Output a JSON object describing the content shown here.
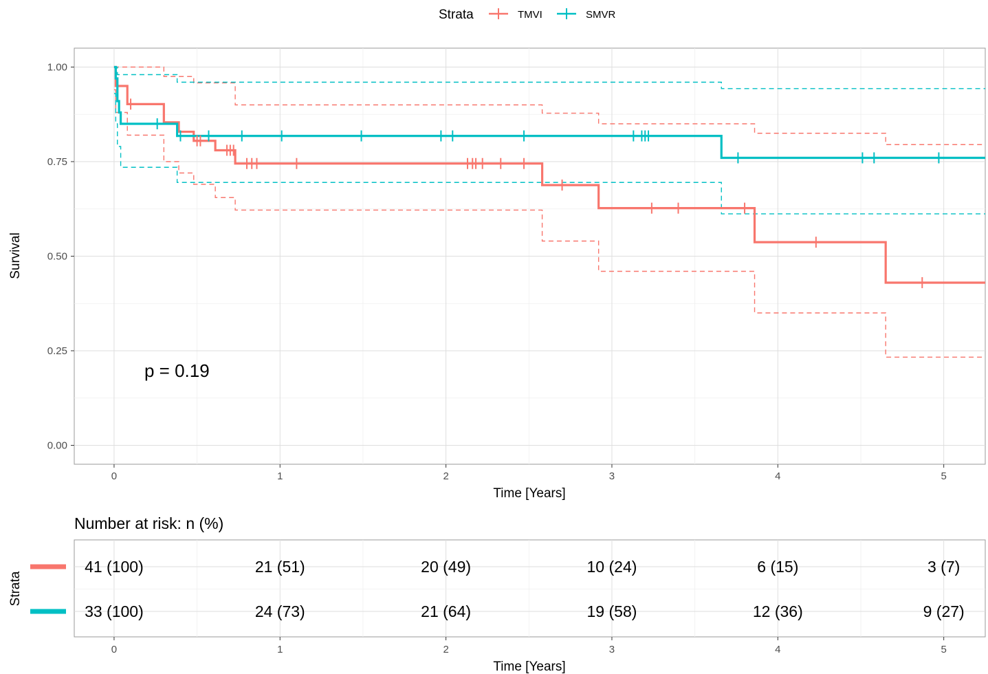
{
  "chart_data": {
    "type": "line",
    "subtype": "kaplan-meier",
    "legend": {
      "title": "Strata",
      "placement": "top",
      "entries": [
        "TMVI",
        "SMVR"
      ]
    },
    "xlabel": "Time [Years]",
    "ylabel": "Survival",
    "xlim": [
      -0.24,
      5.25
    ],
    "ylim": [
      -0.05,
      1.05
    ],
    "x_ticks": [
      "0",
      "1",
      "2",
      "3",
      "4",
      "5"
    ],
    "y_ticks": [
      "0.00",
      "0.25",
      "0.50",
      "0.75",
      "1.00"
    ],
    "grid": true,
    "annotation": "p = 0.19",
    "series": [
      {
        "name": "TMVI",
        "color": "#F8766D",
        "steps": [
          [
            0,
            1.0
          ],
          [
            0.01,
            0.95
          ],
          [
            0.08,
            0.902
          ],
          [
            0.3,
            0.854
          ],
          [
            0.39,
            0.829
          ],
          [
            0.48,
            0.805
          ],
          [
            0.61,
            0.78
          ],
          [
            0.73,
            0.756
          ],
          [
            0.73,
            0.745
          ],
          [
            2.58,
            0.688
          ],
          [
            2.92,
            0.627
          ],
          [
            3.86,
            0.537
          ],
          [
            4.65,
            0.43
          ]
        ],
        "censor_x": [
          0.1,
          0.5,
          0.52,
          0.68,
          0.7,
          0.72,
          0.8,
          0.83,
          0.86,
          1.1,
          2.13,
          2.16,
          2.18,
          2.22,
          2.33,
          2.47,
          2.7,
          3.24,
          3.4,
          3.8,
          4.23,
          4.87
        ],
        "upper_ci": [
          [
            0,
            1.0
          ],
          [
            0.3,
            0.975
          ],
          [
            0.48,
            0.958
          ],
          [
            0.73,
            0.9
          ],
          [
            2.58,
            0.878
          ],
          [
            2.92,
            0.85
          ],
          [
            3.86,
            0.825
          ],
          [
            4.65,
            0.795
          ]
        ],
        "lower_ci": [
          [
            0,
            0.94
          ],
          [
            0.01,
            0.88
          ],
          [
            0.08,
            0.82
          ],
          [
            0.3,
            0.75
          ],
          [
            0.39,
            0.72
          ],
          [
            0.48,
            0.69
          ],
          [
            0.61,
            0.655
          ],
          [
            0.73,
            0.622
          ],
          [
            2.58,
            0.54
          ],
          [
            2.92,
            0.46
          ],
          [
            3.86,
            0.35
          ],
          [
            4.65,
            0.233
          ]
        ]
      },
      {
        "name": "SMVR",
        "color": "#00BFC4",
        "steps": [
          [
            0,
            1.0
          ],
          [
            0.01,
            0.97
          ],
          [
            0.02,
            0.91
          ],
          [
            0.03,
            0.88
          ],
          [
            0.04,
            0.85
          ],
          [
            0.38,
            0.818
          ],
          [
            3.66,
            0.76
          ]
        ],
        "censor_x": [
          0.26,
          0.4,
          0.57,
          0.77,
          1.01,
          1.49,
          1.97,
          2.04,
          2.47,
          3.13,
          3.18,
          3.2,
          3.22,
          3.76,
          4.51,
          4.58,
          4.97
        ],
        "upper_ci": [
          [
            0,
            1.0
          ],
          [
            0.02,
            0.98
          ],
          [
            0.38,
            0.96
          ],
          [
            3.66,
            0.943
          ]
        ],
        "lower_ci": [
          [
            0,
            0.93
          ],
          [
            0.01,
            0.85
          ],
          [
            0.02,
            0.79
          ],
          [
            0.04,
            0.735
          ],
          [
            0.38,
            0.695
          ],
          [
            3.66,
            0.612
          ]
        ]
      }
    ],
    "risk_table": {
      "title": "Number at risk: n (%)",
      "ylabel": "Strata",
      "xlabel": "Time [Years]",
      "times": [
        0,
        1,
        2,
        3,
        4,
        5
      ],
      "rows": [
        {
          "name": "TMVI",
          "color": "#F8766D",
          "values": [
            "41 (100)",
            "21 (51)",
            "20 (49)",
            "10 (24)",
            "6 (15)",
            "3 (7)"
          ]
        },
        {
          "name": "SMVR",
          "color": "#00BFC4",
          "values": [
            "33 (100)",
            "24 (73)",
            "21 (64)",
            "19 (58)",
            "12 (36)",
            "9 (27)"
          ]
        }
      ]
    }
  }
}
